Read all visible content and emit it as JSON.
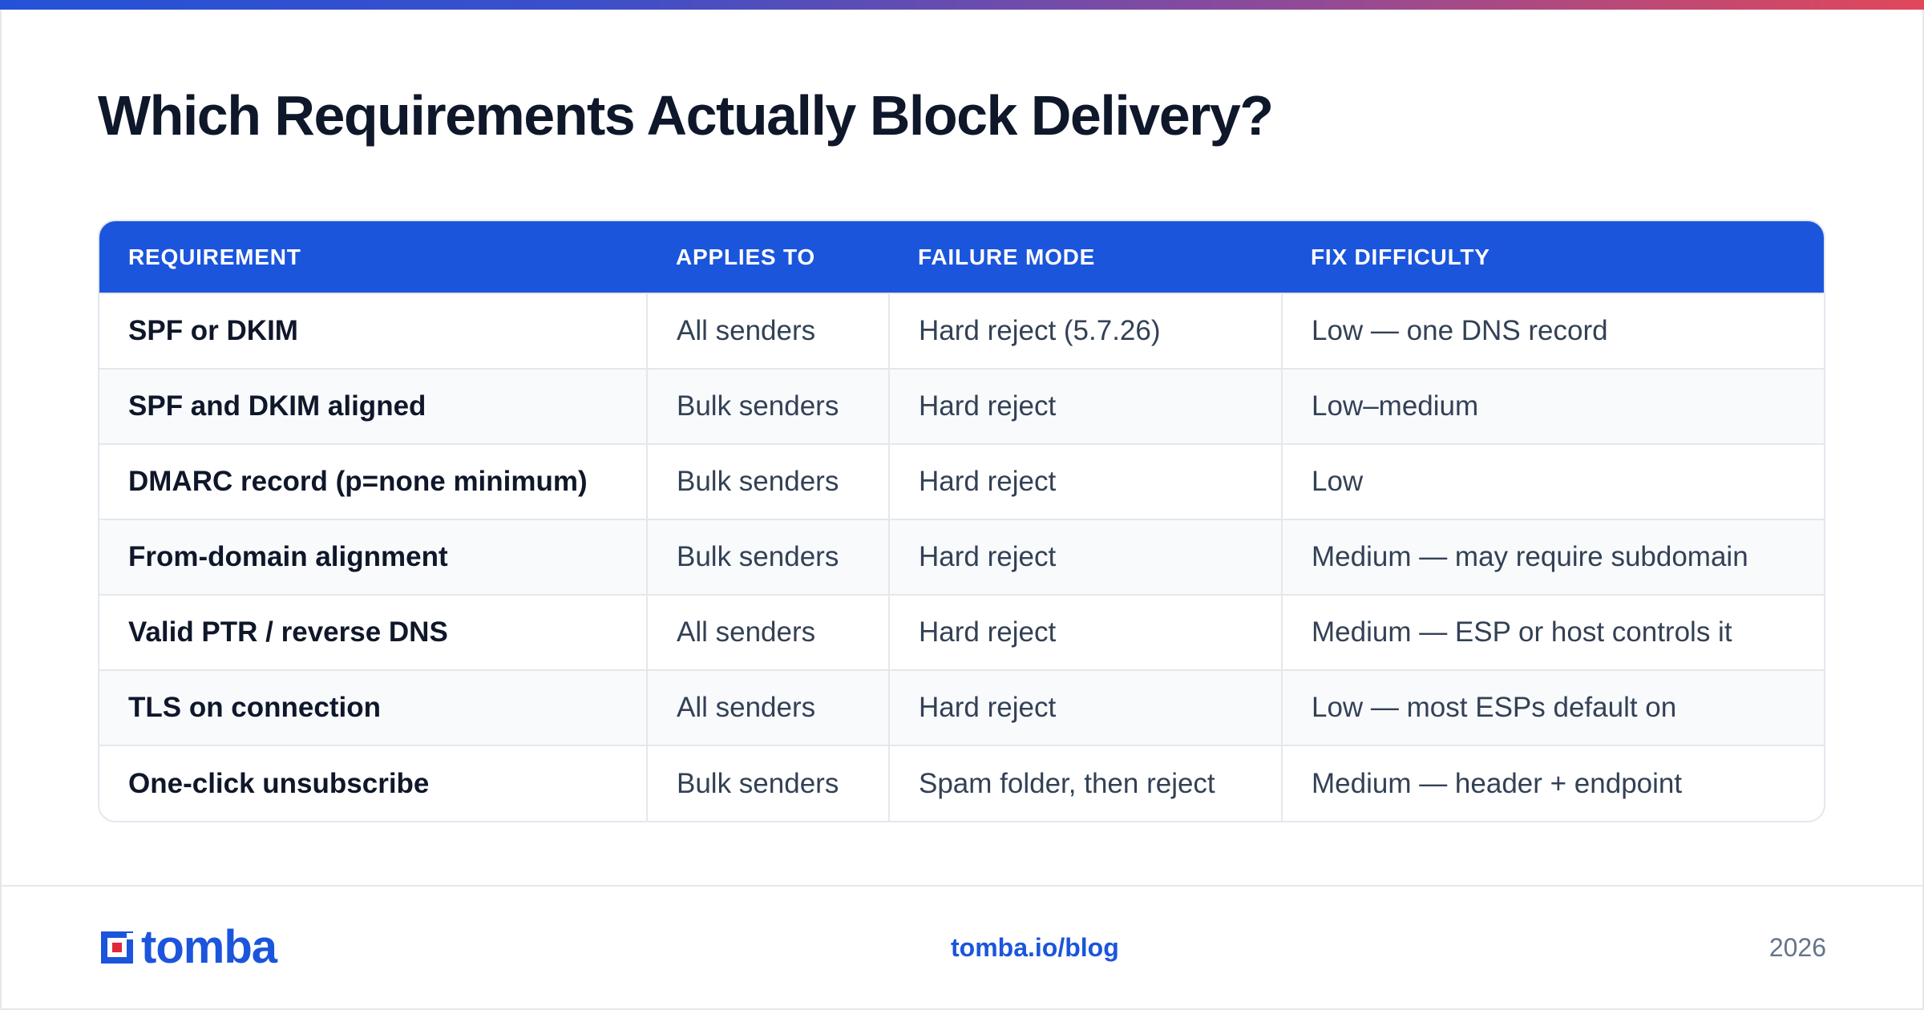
{
  "title": "Which Requirements Actually Block Delivery?",
  "table": {
    "headers": [
      "REQUIREMENT",
      "APPLIES TO",
      "FAILURE MODE",
      "FIX DIFFICULTY"
    ],
    "rows": [
      [
        "SPF or DKIM",
        "All senders",
        "Hard reject (5.7.26)",
        "Low — one DNS record"
      ],
      [
        "SPF and DKIM aligned",
        "Bulk senders",
        "Hard reject",
        "Low–medium"
      ],
      [
        "DMARC record (p=none minimum)",
        "Bulk senders",
        "Hard reject",
        "Low"
      ],
      [
        "From-domain alignment",
        "Bulk senders",
        "Hard reject",
        "Medium — may require subdomain"
      ],
      [
        "Valid PTR / reverse DNS",
        "All senders",
        "Hard reject",
        "Medium — ESP or host controls it"
      ],
      [
        "TLS on connection",
        "All senders",
        "Hard reject",
        "Low — most ESPs default on"
      ],
      [
        "One-click unsubscribe",
        "Bulk senders",
        "Spam folder, then reject",
        "Medium — header + endpoint"
      ]
    ]
  },
  "footer": {
    "logo_text": "tomba",
    "link": "tomba.io/blog",
    "year": "2026"
  },
  "colors": {
    "accent": "#1b55dc",
    "logo_red": "#e0283a",
    "gradient_start": "#2452d6",
    "gradient_end": "#e0485a"
  }
}
